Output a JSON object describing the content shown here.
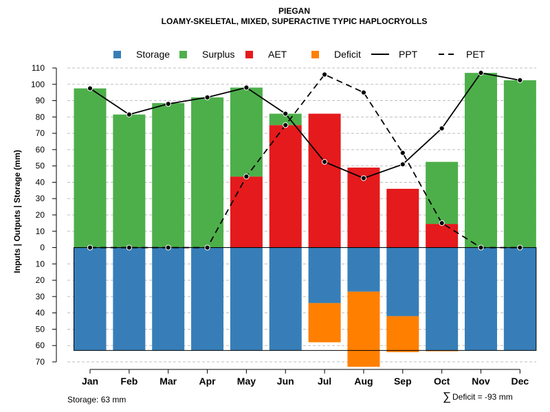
{
  "chart_data": {
    "type": "bar",
    "title": "PIEGAN",
    "subtitle": "LOAMY-SKELETAL, MIXED, SUPERACTIVE TYPIC HAPLOCRYOLLS",
    "ylabel": "Inputs | Outputs | Storage     (mm)",
    "xlabel": "",
    "ylim": [
      -70,
      110
    ],
    "y_ticks": [
      110,
      100,
      90,
      80,
      70,
      60,
      50,
      40,
      30,
      20,
      10,
      0,
      -10,
      -20,
      -30,
      -40,
      -50,
      -60,
      -70
    ],
    "y_tick_labels": [
      "110",
      "100",
      "90",
      "80",
      "70",
      "60",
      "50",
      "40",
      "30",
      "20",
      "10",
      "0",
      "10",
      "20",
      "30",
      "40",
      "50",
      "60",
      "70"
    ],
    "grid": true,
    "legend_position": "top",
    "categories": [
      "Jan",
      "Feb",
      "Mar",
      "Apr",
      "May",
      "Jun",
      "Jul",
      "Aug",
      "Sep",
      "Oct",
      "Nov",
      "Dec"
    ],
    "legend": [
      {
        "name": "Storage",
        "kind": "box",
        "color": "#377EB8"
      },
      {
        "name": "Surplus",
        "kind": "box",
        "color": "#4DAF4A"
      },
      {
        "name": "AET",
        "kind": "box",
        "color": "#E41A1C"
      },
      {
        "name": "Deficit",
        "kind": "box",
        "color": "#FF7F00"
      },
      {
        "name": "PPT",
        "kind": "solid-line",
        "color": "#000000"
      },
      {
        "name": "PET",
        "kind": "dashed-line",
        "color": "#000000"
      }
    ],
    "series": [
      {
        "name": "AET",
        "color": "#E41A1C",
        "values": [
          0,
          0,
          0,
          0,
          43.5,
          75,
          82,
          49,
          36,
          14.5,
          0,
          0
        ]
      },
      {
        "name": "Surplus",
        "color": "#4DAF4A",
        "values": [
          97.5,
          81.5,
          88.5,
          92,
          54.5,
          7,
          0,
          0,
          0,
          38,
          107,
          102.5
        ]
      },
      {
        "name": "Storage",
        "color": "#377EB8",
        "values": [
          63,
          63,
          63,
          63,
          63,
          63,
          34,
          27,
          42,
          63,
          63,
          63
        ]
      },
      {
        "name": "Deficit",
        "color": "#FF7F00",
        "values": [
          0,
          0,
          0,
          0,
          0,
          0,
          24,
          46,
          22,
          0.5,
          0,
          0
        ]
      },
      {
        "name": "PPT",
        "color": "#000000",
        "values": [
          97.5,
          81.5,
          88,
          92,
          98,
          82,
          52.5,
          42.5,
          51,
          73,
          107,
          102.5
        ]
      },
      {
        "name": "PET",
        "color": "#000000",
        "values": [
          0,
          0,
          0,
          0,
          43.5,
          75,
          106,
          95,
          58,
          15,
          0,
          0
        ]
      }
    ],
    "storage_capacity": 63
  },
  "footer": {
    "storage_note": "Storage: 63 mm",
    "deficit_symbol": "∑",
    "deficit_note": "Deficit = -93 mm"
  }
}
